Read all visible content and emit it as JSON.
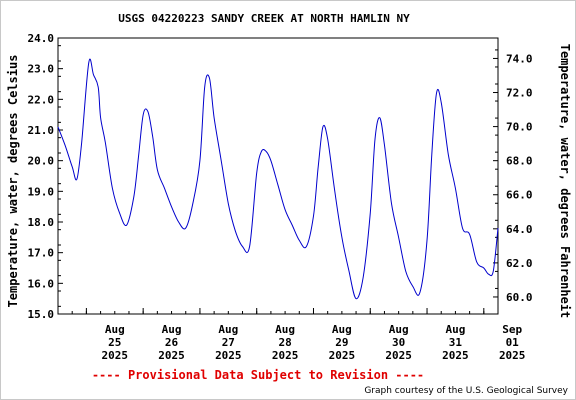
{
  "header": {
    "title": "USGS 04220223 SANDY CREEK AT NORTH HAMLIN NY"
  },
  "footer": {
    "provisional": "---- Provisional Data Subject to Revision ----",
    "credit": "Graph courtesy of the U.S. Geological Survey"
  },
  "chart_data": {
    "type": "line",
    "title": "USGS 04220223 SANDY CREEK AT NORTH HAMLIN NY",
    "ylabel": "Temperature, water, degrees Celsius",
    "ylabel_right": "Temperature, water, degrees Fahrenheit",
    "xlabel": "",
    "x_unit": "day",
    "xlim": [
      "2025-08-24T12:00",
      "2025-09-01T06:00"
    ],
    "ylim": [
      15.0,
      24.0
    ],
    "y_ticks": [
      "15.0",
      "16.0",
      "17.0",
      "18.0",
      "19.0",
      "20.0",
      "21.0",
      "22.0",
      "23.0",
      "24.0"
    ],
    "y2lim": [
      59.0,
      75.2
    ],
    "y2_ticks": [
      "60.0",
      "62.0",
      "64.0",
      "66.0",
      "68.0",
      "70.0",
      "72.0",
      "74.0"
    ],
    "x_ticks": [
      {
        "at": "2025-08-25T00:00",
        "lines": [
          "Aug",
          "25",
          "2025"
        ]
      },
      {
        "at": "2025-08-26T00:00",
        "lines": [
          "Aug",
          "26",
          "2025"
        ]
      },
      {
        "at": "2025-08-27T00:00",
        "lines": [
          "Aug",
          "27",
          "2025"
        ]
      },
      {
        "at": "2025-08-28T00:00",
        "lines": [
          "Aug",
          "28",
          "2025"
        ]
      },
      {
        "at": "2025-08-29T00:00",
        "lines": [
          "Aug",
          "29",
          "2025"
        ]
      },
      {
        "at": "2025-08-30T00:00",
        "lines": [
          "Aug",
          "30",
          "2025"
        ]
      },
      {
        "at": "2025-08-31T00:00",
        "lines": [
          "Aug",
          "31",
          "2025"
        ]
      },
      {
        "at": "2025-09-01T00:00",
        "lines": [
          "Sep",
          "01",
          "2025"
        ]
      }
    ],
    "grid": false,
    "line_color": "#0000cc",
    "series": [
      {
        "x": [
          "2025-08-24T12:00",
          "2025-08-24T15:00",
          "2025-08-24T18:00",
          "2025-08-24T20:00",
          "2025-08-24T22:00",
          "2025-08-25T01:00",
          "2025-08-25T03:00",
          "2025-08-25T05:00",
          "2025-08-25T06:00",
          "2025-08-25T08:00",
          "2025-08-25T11:00",
          "2025-08-25T14:00",
          "2025-08-25T17:00",
          "2025-08-25T20:00",
          "2025-08-25T22:00",
          "2025-08-26T00:00",
          "2025-08-26T02:00",
          "2025-08-26T04:00",
          "2025-08-26T06:00",
          "2025-08-26T09:00",
          "2025-08-26T12:00",
          "2025-08-26T15:00",
          "2025-08-26T18:00",
          "2025-08-26T21:00",
          "2025-08-27T00:00",
          "2025-08-27T02:00",
          "2025-08-27T04:00",
          "2025-08-27T06:00",
          "2025-08-27T09:00",
          "2025-08-27T12:00",
          "2025-08-27T15:00",
          "2025-08-27T18:00",
          "2025-08-27T21:00",
          "2025-08-28T00:00",
          "2025-08-28T02:00",
          "2025-08-28T04:00",
          "2025-08-28T06:00",
          "2025-08-28T09:00",
          "2025-08-28T12:00",
          "2025-08-28T15:00",
          "2025-08-28T18:00",
          "2025-08-28T21:00",
          "2025-08-29T00:00",
          "2025-08-29T02:00",
          "2025-08-29T04:00",
          "2025-08-29T06:00",
          "2025-08-29T09:00",
          "2025-08-29T12:00",
          "2025-08-29T15:00",
          "2025-08-29T18:00",
          "2025-08-29T21:00",
          "2025-08-30T00:00",
          "2025-08-30T02:00",
          "2025-08-30T04:00",
          "2025-08-30T06:00",
          "2025-08-30T09:00",
          "2025-08-30T12:00",
          "2025-08-30T15:00",
          "2025-08-30T18:00",
          "2025-08-30T21:00",
          "2025-08-31T00:00",
          "2025-08-31T02:00",
          "2025-08-31T04:00",
          "2025-08-31T06:00",
          "2025-08-31T09:00",
          "2025-08-31T12:00",
          "2025-08-31T15:00",
          "2025-08-31T18:00",
          "2025-08-31T21:00",
          "2025-09-01T00:00",
          "2025-09-01T02:00",
          "2025-09-01T04:00",
          "2025-09-01T06:00"
        ],
        "values": [
          21.1,
          20.5,
          19.8,
          19.4,
          20.6,
          23.2,
          22.8,
          22.4,
          21.4,
          20.6,
          19.1,
          18.3,
          17.9,
          18.8,
          20.1,
          21.5,
          21.6,
          20.8,
          19.7,
          19.1,
          18.5,
          18.0,
          17.8,
          18.6,
          20.0,
          22.4,
          22.7,
          21.4,
          20.0,
          18.6,
          17.7,
          17.2,
          17.2,
          19.6,
          20.3,
          20.3,
          20.0,
          19.2,
          18.4,
          17.9,
          17.4,
          17.2,
          18.2,
          19.8,
          21.1,
          20.7,
          19.0,
          17.5,
          16.4,
          15.5,
          16.2,
          18.3,
          20.7,
          21.4,
          20.5,
          18.6,
          17.5,
          16.4,
          15.9,
          15.7,
          17.4,
          20.2,
          22.2,
          21.9,
          20.2,
          19.1,
          17.8,
          17.6,
          16.7,
          16.5,
          16.3,
          16.4,
          17.8
        ]
      }
    ]
  }
}
